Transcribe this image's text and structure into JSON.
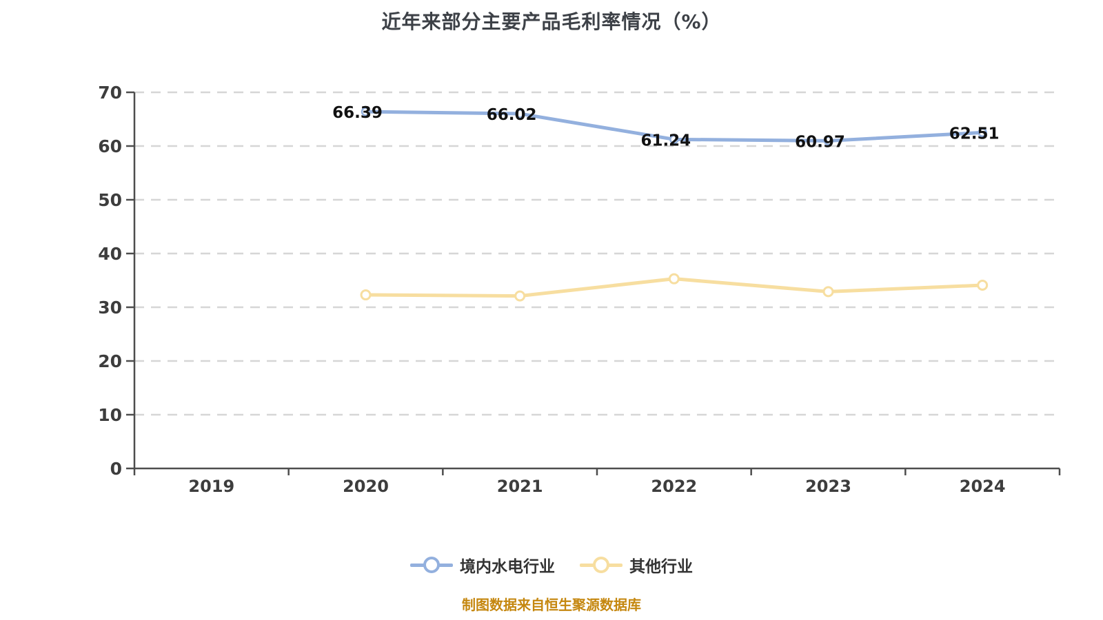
{
  "title": "近年来部分主要产品毛利率情况（%）",
  "attribution": "制图数据来自恒生聚源数据库",
  "colors": {
    "series_blue": "#93b0de",
    "series_yellow": "#f7dea0",
    "grid": "#d6d6d6",
    "axis": "#4d4d4d",
    "tick_label": "#3d3d3d",
    "data_label": "#111111",
    "title": "#3d4147",
    "attribution": "#c5870f",
    "background": "#ffffff"
  },
  "chart_data": {
    "type": "line",
    "title": "近年来部分主要产品毛利率情况（%）",
    "categories": [
      "2019",
      "2020",
      "2021",
      "2022",
      "2023",
      "2024"
    ],
    "series": [
      {
        "name": "境内水电行业",
        "color": "#93b0de",
        "values": [
          null,
          66.39,
          66.02,
          61.24,
          60.97,
          62.51
        ],
        "show_labels": true
      },
      {
        "name": "其他行业",
        "color": "#f7dea0",
        "values": [
          null,
          32.3,
          32.1,
          35.3,
          32.9,
          34.1
        ],
        "show_labels": false
      }
    ],
    "xlabel": "",
    "ylabel": "",
    "ylim": [
      0,
      70
    ],
    "ytick_step": 10,
    "grid": "horizontal-dashed",
    "legend_position": "bottom"
  },
  "legend": {
    "items": [
      {
        "label": "境内水电行业",
        "color": "#93b0de"
      },
      {
        "label": "其他行业",
        "color": "#f7dea0"
      }
    ]
  }
}
